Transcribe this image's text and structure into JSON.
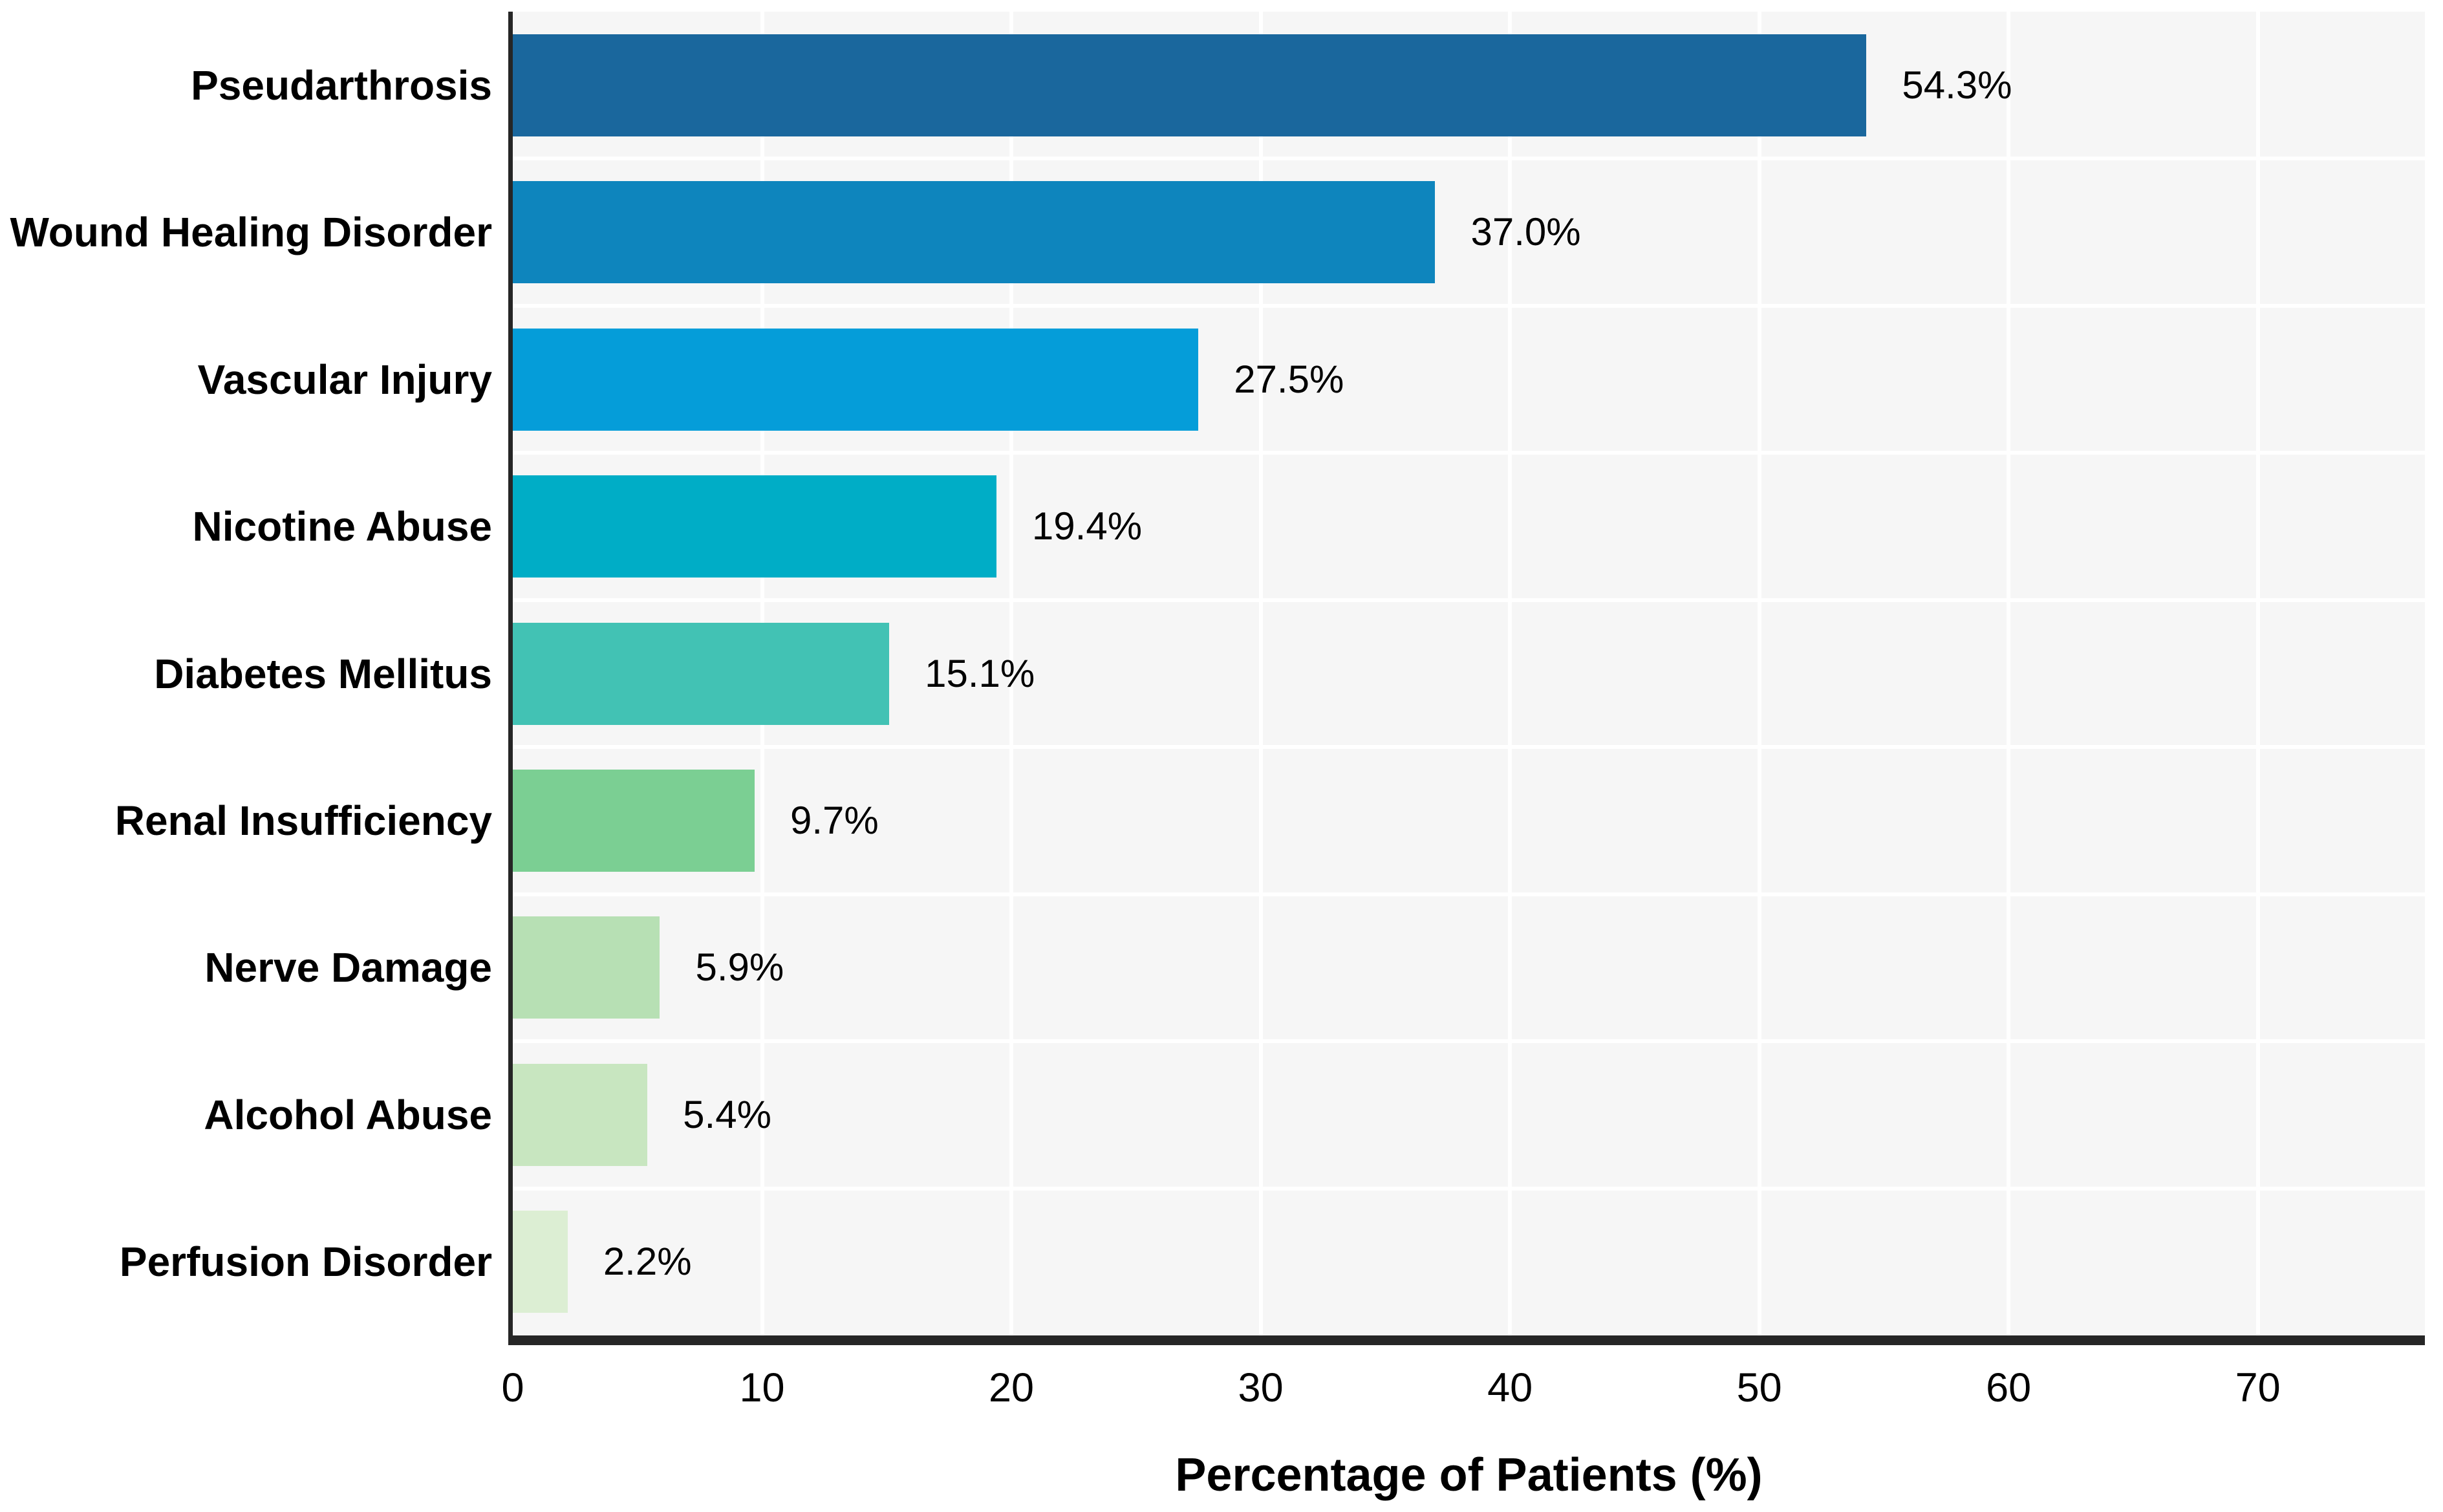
{
  "chart_data": {
    "type": "bar",
    "orientation": "horizontal",
    "title": "",
    "xlabel": "Percentage of Patients (%)",
    "ylabel": "",
    "categories": [
      "Pseudarthrosis",
      "Wound Healing Disorder",
      "Vascular Injury",
      "Nicotine Abuse",
      "Diabetes Mellitus",
      "Renal Insufficiency",
      "Nerve Damage",
      "Alcohol Abuse",
      "Perfusion Disorder"
    ],
    "values": [
      54.3,
      37.0,
      27.5,
      19.4,
      15.1,
      9.7,
      5.9,
      5.4,
      2.2
    ],
    "value_labels": [
      "54.3%",
      "37.0%",
      "27.5%",
      "19.4%",
      "15.1%",
      "9.7%",
      "5.9%",
      "5.4%",
      "2.2%"
    ],
    "bar_colors": [
      "#1a679d",
      "#0e85bd",
      "#059dd9",
      "#00adc6",
      "#42c2b4",
      "#7bcf93",
      "#b7e0b4",
      "#c8e6c0",
      "#dceed3"
    ],
    "xticks": [
      0,
      10,
      20,
      30,
      40,
      50,
      60,
      70
    ],
    "xlim": [
      0,
      76.7
    ],
    "grid": "on",
    "grid_color": "#ffffff",
    "plot_background": "#f6f6f6",
    "figure_background": "#ffffff",
    "spine_color": "#262626",
    "text_color": "#000000",
    "legend": "none"
  }
}
